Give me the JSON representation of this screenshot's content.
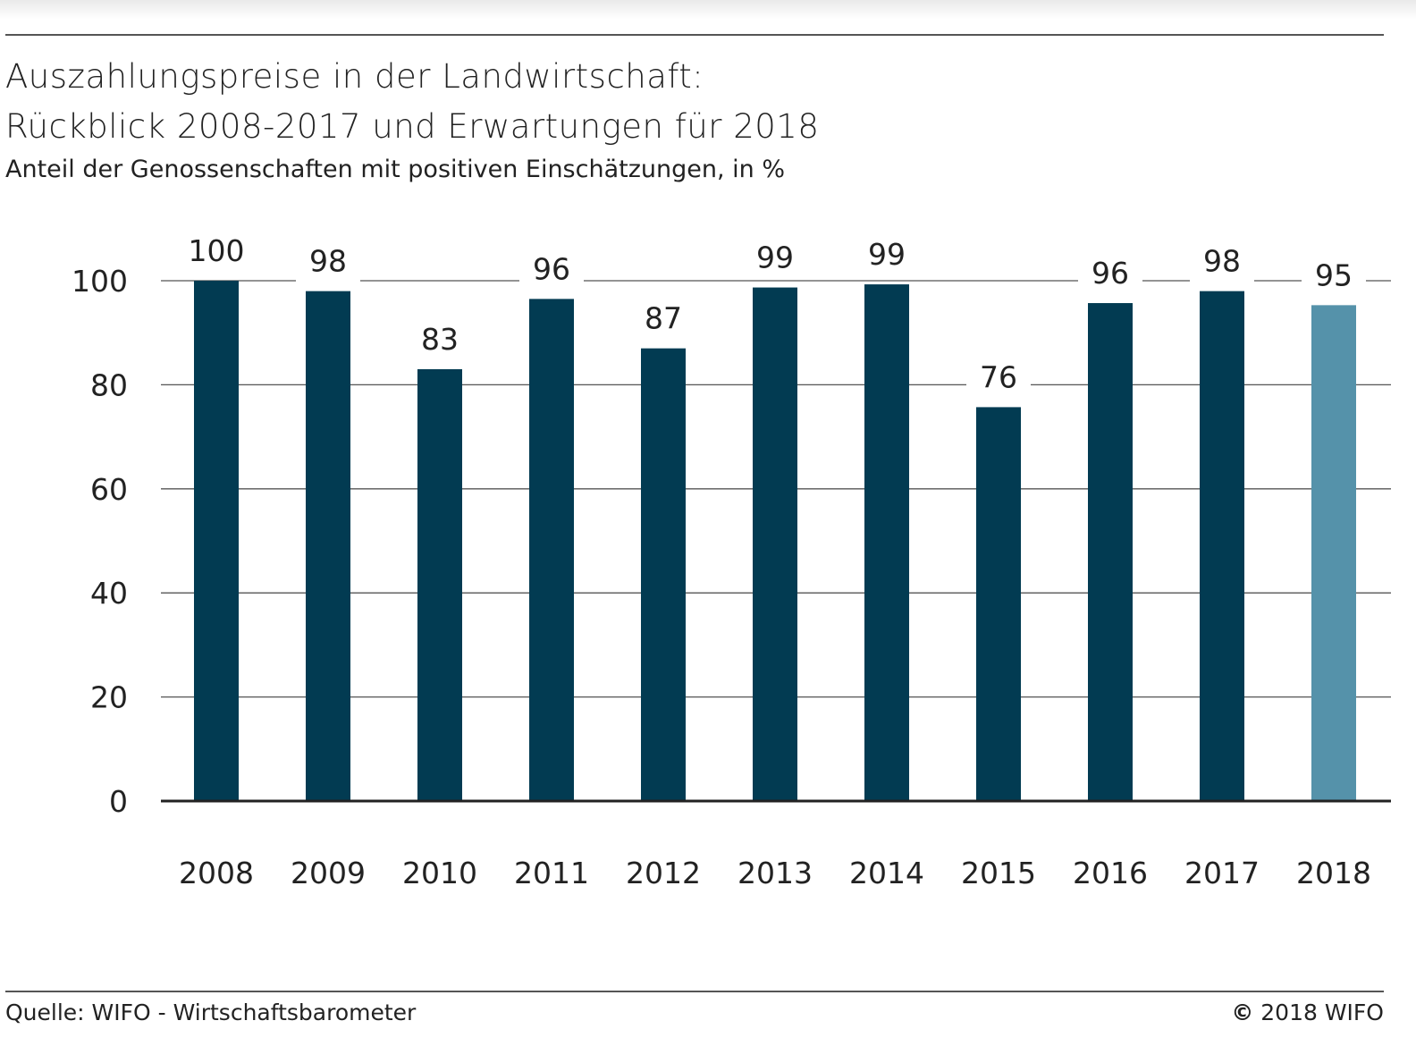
{
  "header": {
    "title_line1": "Auszahlungspreise in der Landwirtschaft:",
    "title_line2": "Rückblick 2008-2017 und Erwartungen für 2018",
    "subtitle": "Anteil der Genossenschaften mit positiven Einschätzungen, in %"
  },
  "footer": {
    "source": "Quelle: WIFO - Wirtschaftsbarometer",
    "copyright_symbol": "©",
    "copyright_text": "2018 WIFO"
  },
  "colors": {
    "bar": "#023b52",
    "bar_forecast": "#5592aa",
    "grid": "#555555",
    "axis": "#222222"
  },
  "chart_data": {
    "type": "bar",
    "categories": [
      "2008",
      "2009",
      "2010",
      "2011",
      "2012",
      "2013",
      "2014",
      "2015",
      "2016",
      "2017",
      "2018"
    ],
    "values": [
      100,
      98,
      83,
      96,
      87,
      99,
      99,
      76,
      96,
      98,
      95
    ],
    "plotted_values": [
      100,
      98,
      83,
      96.5,
      87,
      98.7,
      99.3,
      75.7,
      95.7,
      98,
      95.3
    ],
    "data_labels": [
      "100",
      "98",
      "83",
      "96",
      "87",
      "99",
      "99",
      "76",
      "96",
      "98",
      "95"
    ],
    "forecast_categories": [
      "2018"
    ],
    "yticks": [
      0,
      20,
      40,
      60,
      80,
      100
    ],
    "ylim": [
      0,
      100
    ],
    "grid": true
  }
}
